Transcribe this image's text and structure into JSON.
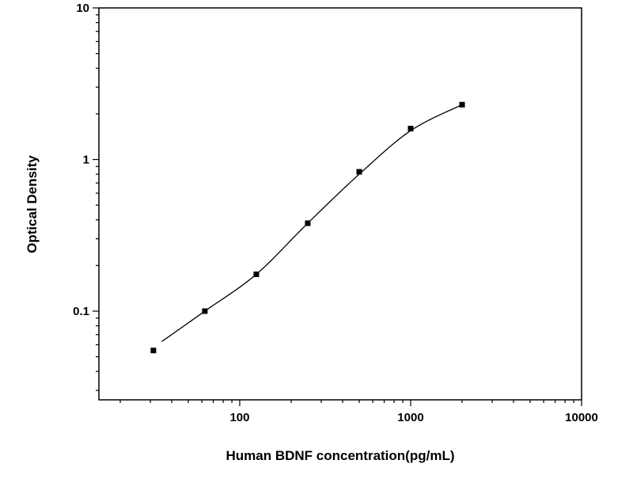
{
  "figure": {
    "background": "#ffffff",
    "line_color": "#000000"
  },
  "chart_data": {
    "type": "scatter",
    "title": "",
    "xlabel": "Human BDNF concentration(pg/mL)",
    "ylabel": "Optical Density",
    "x_scale": "log",
    "y_scale": "log",
    "xlim": [
      15,
      10000
    ],
    "ylim": [
      0.026,
      10
    ],
    "x_major_ticks": [
      100,
      1000,
      10000
    ],
    "x_tick_labels": [
      "100",
      "1000",
      "10000"
    ],
    "y_major_ticks": [
      0.1,
      1,
      10
    ],
    "y_tick_labels": [
      "0.1",
      "1",
      "10"
    ],
    "grid": false,
    "legend": "none",
    "series": [
      {
        "name": "standard points",
        "marker": "square",
        "color": "#000000",
        "x": [
          31.25,
          62.5,
          125,
          250,
          500,
          1000,
          2000
        ],
        "y": [
          0.055,
          0.1,
          0.175,
          0.38,
          0.83,
          1.6,
          2.3
        ]
      }
    ],
    "fit_curve": {
      "name": "fitted standard curve",
      "color": "#000000",
      "x": [
        35,
        62.5,
        125,
        250,
        500,
        1000,
        2000
      ],
      "y": [
        0.063,
        0.1,
        0.175,
        0.38,
        0.8,
        1.55,
        2.3
      ]
    }
  }
}
